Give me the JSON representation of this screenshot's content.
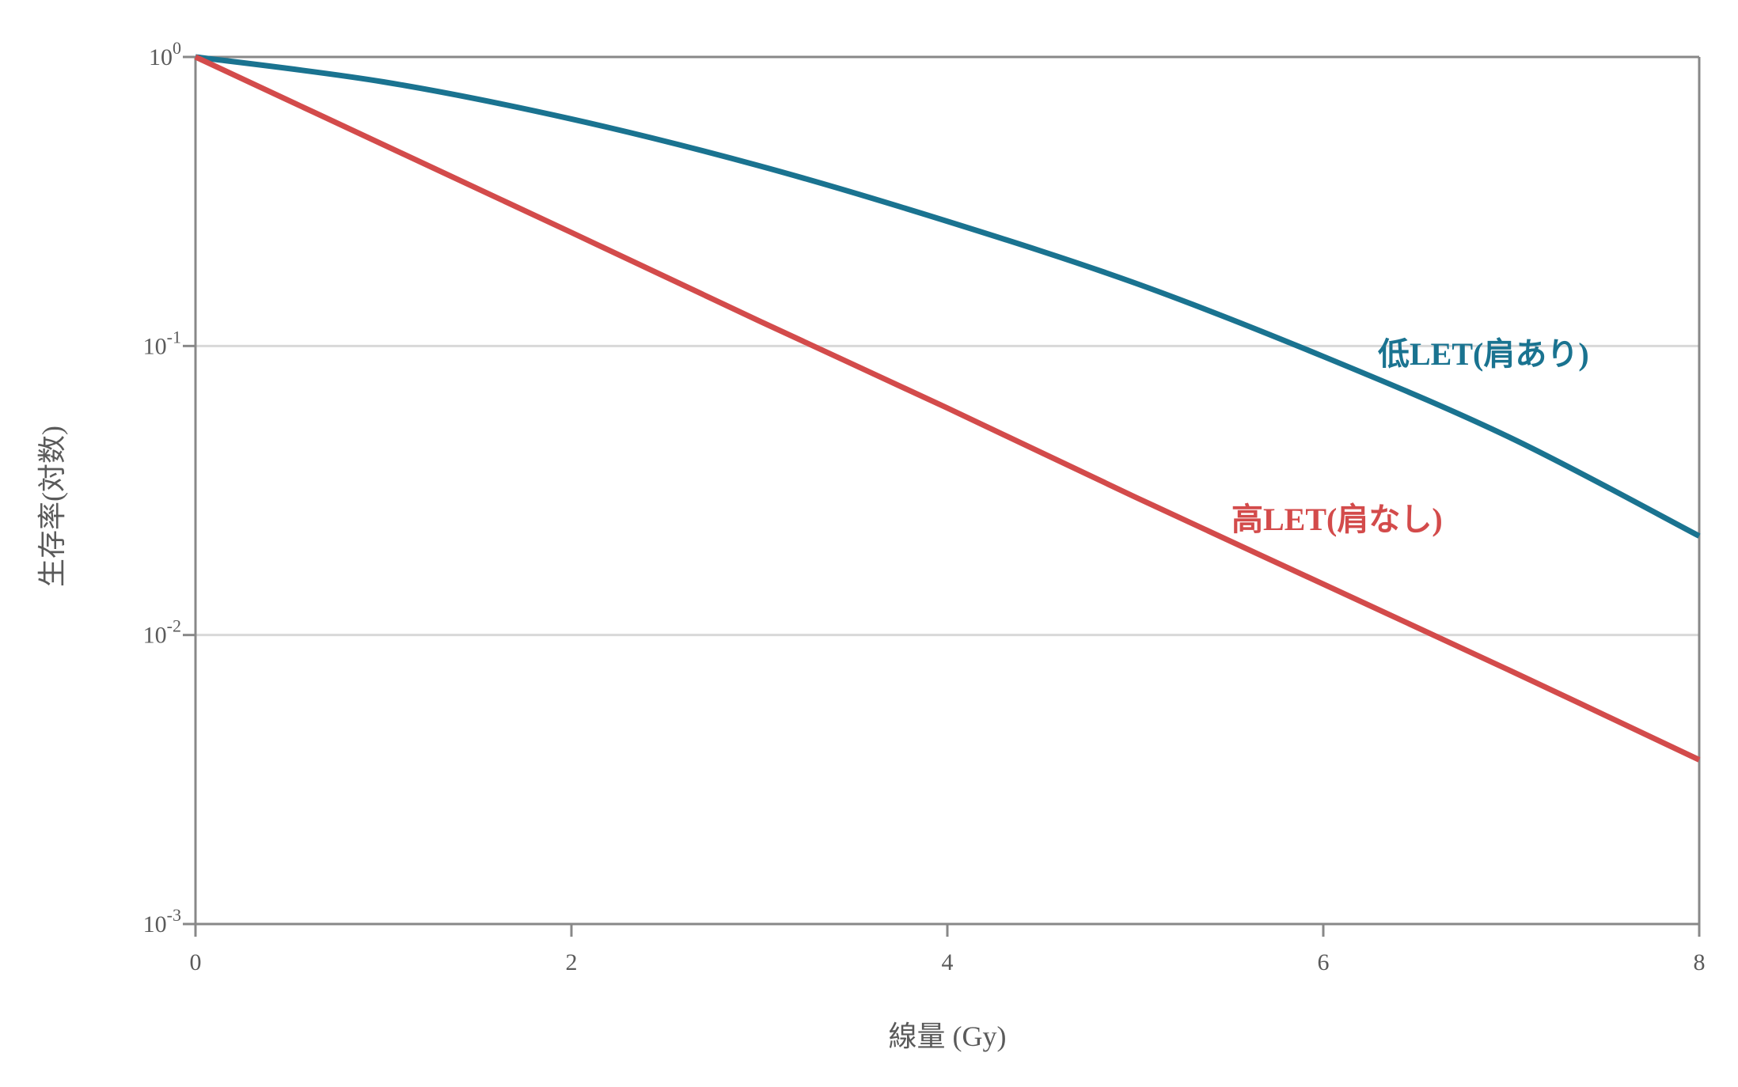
{
  "chart_data": {
    "type": "line",
    "xlabel": "線量 (Gy)",
    "ylabel": "生存率(対数)",
    "xlim": [
      0,
      8
    ],
    "ylim": [
      0.001,
      1
    ],
    "yscale": "log",
    "grid": true,
    "x_ticks": [
      {
        "value": 0,
        "label": "0"
      },
      {
        "value": 2,
        "label": "2"
      },
      {
        "value": 4,
        "label": "4"
      },
      {
        "value": 6,
        "label": "6"
      },
      {
        "value": 8,
        "label": "8"
      }
    ],
    "y_ticks": [
      {
        "value": 1,
        "base": "10",
        "exp": "0"
      },
      {
        "value": 0.1,
        "base": "10",
        "exp": "-1"
      },
      {
        "value": 0.01,
        "base": "10",
        "exp": "-2"
      },
      {
        "value": 0.001,
        "base": "10",
        "exp": "-3"
      }
    ],
    "series": [
      {
        "name": "低LET(肩あり)",
        "color": "#1a7390",
        "x": [
          0,
          1,
          2,
          3,
          4,
          5,
          6,
          7,
          8
        ],
        "y": [
          1.0,
          0.82,
          0.61,
          0.42,
          0.27,
          0.165,
          0.092,
          0.048,
          0.022
        ]
      },
      {
        "name": "高LET(肩なし)",
        "color": "#d34b4b",
        "x": [
          0,
          1,
          2,
          3,
          4,
          5,
          6,
          7,
          8
        ],
        "y": [
          1.0,
          0.497,
          0.247,
          0.122,
          0.061,
          0.03,
          0.015,
          0.0075,
          0.0037
        ]
      }
    ],
    "label_colors": {
      "axis": "#888888",
      "grid": "#d8d8d8",
      "text": "#5a5a5a"
    }
  }
}
